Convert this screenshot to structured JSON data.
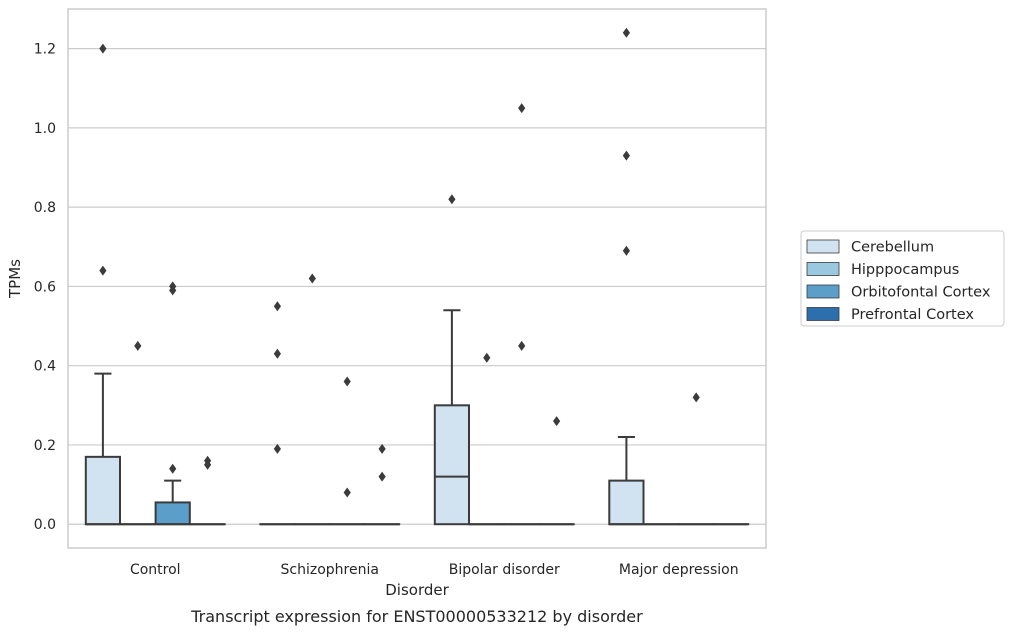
{
  "chart_data": {
    "type": "box",
    "caption": "Transcript expression for ENST00000533212 by disorder",
    "xlabel": "Disorder",
    "ylabel": "TPMs",
    "categories": [
      "Control",
      "Schizophrenia",
      "Bipolar disorder",
      "Major depression"
    ],
    "ylim": [
      -0.06,
      1.3
    ],
    "yticks": [
      0.0,
      0.2,
      0.4,
      0.6,
      0.8,
      1.0,
      1.2
    ],
    "ytick_labels": [
      "0.0",
      "0.2",
      "0.4",
      "0.6",
      "0.8",
      "1.0",
      "1.2"
    ],
    "grid": true,
    "legend_position": "right",
    "series": [
      {
        "name": "Cerebellum",
        "color": "#d1e2f1",
        "boxes": [
          {
            "q1": 0.0,
            "median": 0.0,
            "q3": 0.17,
            "whisker_low": 0.0,
            "whisker_high": 0.38,
            "outliers": [
              1.2,
              0.64
            ]
          },
          {
            "q1": 0.0,
            "median": 0.0,
            "q3": 0.0,
            "whisker_low": 0.0,
            "whisker_high": 0.0,
            "outliers": [
              0.55,
              0.43,
              0.19
            ]
          },
          {
            "q1": 0.0,
            "median": 0.12,
            "q3": 0.3,
            "whisker_low": 0.0,
            "whisker_high": 0.54,
            "outliers": [
              0.82
            ]
          },
          {
            "q1": 0.0,
            "median": 0.0,
            "q3": 0.11,
            "whisker_low": 0.0,
            "whisker_high": 0.22,
            "outliers": [
              1.24,
              0.93,
              0.69
            ]
          }
        ]
      },
      {
        "name": "Hipppocampus",
        "color": "#9ac8e0",
        "boxes": [
          {
            "q1": 0.0,
            "median": 0.0,
            "q3": 0.0,
            "whisker_low": 0.0,
            "whisker_high": 0.0,
            "outliers": [
              0.45
            ]
          },
          {
            "q1": 0.0,
            "median": 0.0,
            "q3": 0.0,
            "whisker_low": 0.0,
            "whisker_high": 0.0,
            "outliers": [
              0.62
            ]
          },
          {
            "q1": 0.0,
            "median": 0.0,
            "q3": 0.0,
            "whisker_low": 0.0,
            "whisker_high": 0.0,
            "outliers": [
              0.42
            ]
          },
          {
            "q1": 0.0,
            "median": 0.0,
            "q3": 0.0,
            "whisker_low": 0.0,
            "whisker_high": 0.0,
            "outliers": []
          }
        ]
      },
      {
        "name": "Orbitofontal Cortex",
        "color": "#5a9ec9",
        "boxes": [
          {
            "q1": 0.0,
            "median": 0.0,
            "q3": 0.055,
            "whisker_low": 0.0,
            "whisker_high": 0.11,
            "outliers": [
              0.6,
              0.59,
              0.14
            ]
          },
          {
            "q1": 0.0,
            "median": 0.0,
            "q3": 0.0,
            "whisker_low": 0.0,
            "whisker_high": 0.0,
            "outliers": [
              0.36,
              0.08
            ]
          },
          {
            "q1": 0.0,
            "median": 0.0,
            "q3": 0.0,
            "whisker_low": 0.0,
            "whisker_high": 0.0,
            "outliers": [
              1.05,
              0.45
            ]
          },
          {
            "q1": 0.0,
            "median": 0.0,
            "q3": 0.0,
            "whisker_low": 0.0,
            "whisker_high": 0.0,
            "outliers": [
              0.32
            ]
          }
        ]
      },
      {
        "name": "Prefrontal Cortex",
        "color": "#2d6fac",
        "boxes": [
          {
            "q1": 0.0,
            "median": 0.0,
            "q3": 0.0,
            "whisker_low": 0.0,
            "whisker_high": 0.0,
            "outliers": [
              0.16,
              0.15
            ]
          },
          {
            "q1": 0.0,
            "median": 0.0,
            "q3": 0.0,
            "whisker_low": 0.0,
            "whisker_high": 0.0,
            "outliers": [
              0.19,
              0.12
            ]
          },
          {
            "q1": 0.0,
            "median": 0.0,
            "q3": 0.0,
            "whisker_low": 0.0,
            "whisker_high": 0.0,
            "outliers": [
              0.26
            ]
          },
          {
            "q1": 0.0,
            "median": 0.0,
            "q3": 0.0,
            "whisker_low": 0.0,
            "whisker_high": 0.0,
            "outliers": []
          }
        ]
      }
    ]
  }
}
